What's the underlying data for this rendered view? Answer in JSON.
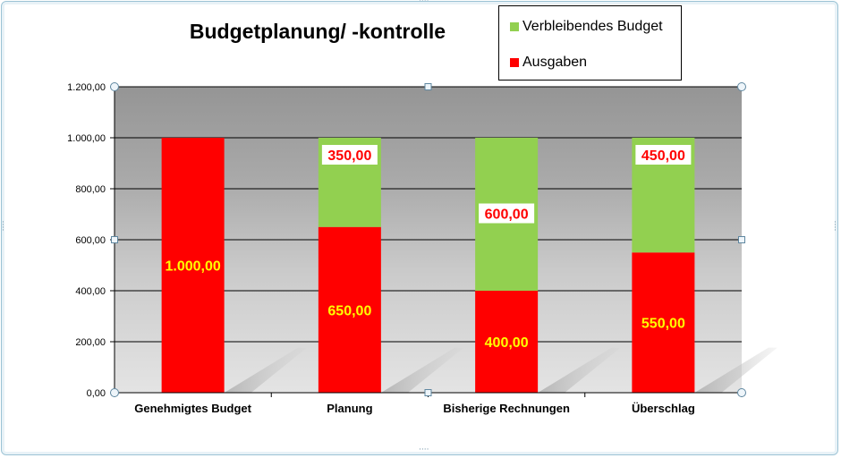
{
  "chart_data": {
    "type": "bar",
    "stacked": true,
    "title": "Budgetplanung/ -kontrolle",
    "categories": [
      "Genehmigtes Budget",
      "Planung",
      "Bisherige Rechnungen",
      "Überschlag"
    ],
    "series": [
      {
        "name": "Ausgaben",
        "color": "#ff0000",
        "values": [
          1000,
          650,
          400,
          550
        ],
        "labels": [
          "1.000,00",
          "650,00",
          "400,00",
          "550,00"
        ]
      },
      {
        "name": "Verbleibendes Budget",
        "color": "#92d050",
        "values": [
          0,
          350,
          600,
          450
        ],
        "labels": [
          "",
          "350,00",
          "600,00",
          "450,00"
        ]
      }
    ],
    "ylim": [
      0,
      1200
    ],
    "yticks": [
      0,
      200,
      400,
      600,
      800,
      1000,
      1200
    ],
    "ytick_labels": [
      "0,00",
      "200,00",
      "400,00",
      "600,00",
      "800,00",
      "1.000,00",
      "1.200,00"
    ],
    "grid": true,
    "legend_position": "top-right",
    "xlabel": "",
    "ylabel": ""
  }
}
